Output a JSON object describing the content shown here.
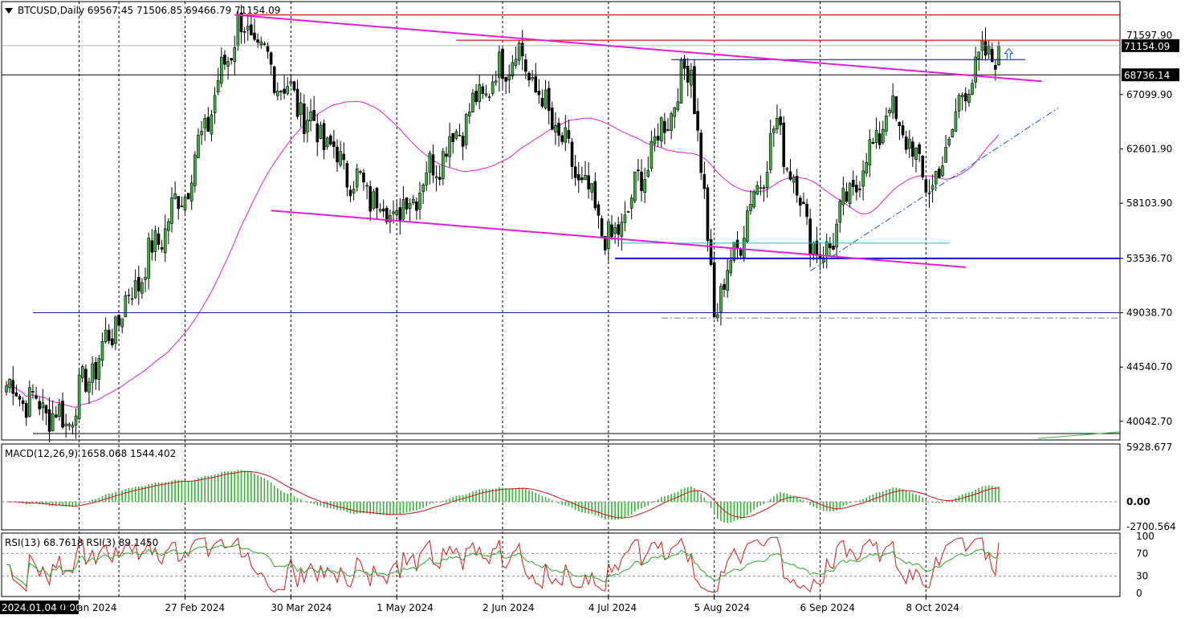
{
  "header": {
    "symbol_line": "BTCUSD,Daily  69567.45 71506.85 69466.79 71154.09",
    "macd_label": "MACD(12,26,9) 1658.068 1544.402",
    "rsi_label": "RSI(13) 68.7618  RSI(3) 89.1450"
  },
  "price_axis": {
    "ticks": [
      "71154.09",
      "68736.14",
      "67099.90",
      "62601.90",
      "58103.90",
      "53536.70",
      "49038.70",
      "44540.70",
      "40042.70"
    ],
    "current_price": "71154.09",
    "marked_level": "68736.14",
    "partial_top_tick": "71597.90"
  },
  "macd_axis": {
    "ticks": [
      "5928.677",
      "0.00",
      "-2700.564"
    ]
  },
  "rsi_axis": {
    "ticks": [
      "100",
      "70",
      "30",
      "0"
    ]
  },
  "time_axis": {
    "cursor_label": "2024.01.04 0:00",
    "labels": [
      "26 Jan 2024",
      "27 Feb 2024",
      "30 Mar 2024",
      "1 May 2024",
      "2 Jun 2024",
      "4 Jul 2024",
      "5 Aug 2024",
      "6 Sep 2024",
      "8 Oct 2024"
    ]
  },
  "colors": {
    "bull": "#3bb33b",
    "bear": "#000000",
    "trendline": "#e01fd6",
    "ma": "#e01fd6",
    "resistance": "#d11a1a",
    "support": "#0000c8",
    "macd_hist": "#34b334",
    "macd_signal": "#c8161c",
    "rsi13": "#2aa62a",
    "rsi3": "#d41a1a"
  },
  "chart_data": {
    "type": "candlestick",
    "symbol": "BTCUSD",
    "timeframe": "Daily",
    "last": {
      "open": 69567.45,
      "high": 71506.85,
      "low": 69466.79,
      "close": 71154.09
    },
    "key_points": [
      {
        "date": "2024-01-04",
        "price": 43000
      },
      {
        "date": "2024-01-22",
        "price": 40000
      },
      {
        "date": "2024-02-28",
        "price": 60000
      },
      {
        "date": "2024-03-14",
        "price": 73000
      },
      {
        "date": "2024-04-18",
        "price": 60000
      },
      {
        "date": "2024-05-01",
        "price": 57000
      },
      {
        "date": "2024-06-06",
        "price": 71000
      },
      {
        "date": "2024-07-05",
        "price": 54500
      },
      {
        "date": "2024-07-29",
        "price": 70000
      },
      {
        "date": "2024-08-05",
        "price": 49000
      },
      {
        "date": "2024-08-24",
        "price": 64500
      },
      {
        "date": "2024-09-06",
        "price": 53200
      },
      {
        "date": "2024-09-27",
        "price": 66000
      },
      {
        "date": "2024-10-10",
        "price": 59000
      },
      {
        "date": "2024-10-21",
        "price": 68700
      },
      {
        "date": "2024-10-30",
        "price": 71154
      }
    ],
    "levels": [
      {
        "name": "resistance",
        "value": 73700
      },
      {
        "name": "resistance",
        "value": 71600
      },
      {
        "name": "support",
        "value": 53536.7
      },
      {
        "name": "support",
        "value": 49038.7
      },
      {
        "name": "marked",
        "value": 68736.14
      }
    ],
    "macd": {
      "params": "12,26,9",
      "main": 1658.068,
      "signal": 1544.402,
      "range": [
        -2700.564,
        5928.677
      ]
    },
    "rsi": {
      "params": [
        "13",
        "3"
      ],
      "rsi13": 68.7618,
      "rsi3": 89.145,
      "levels": [
        30,
        70
      ]
    },
    "price_range": [
      38500,
      74800
    ]
  }
}
